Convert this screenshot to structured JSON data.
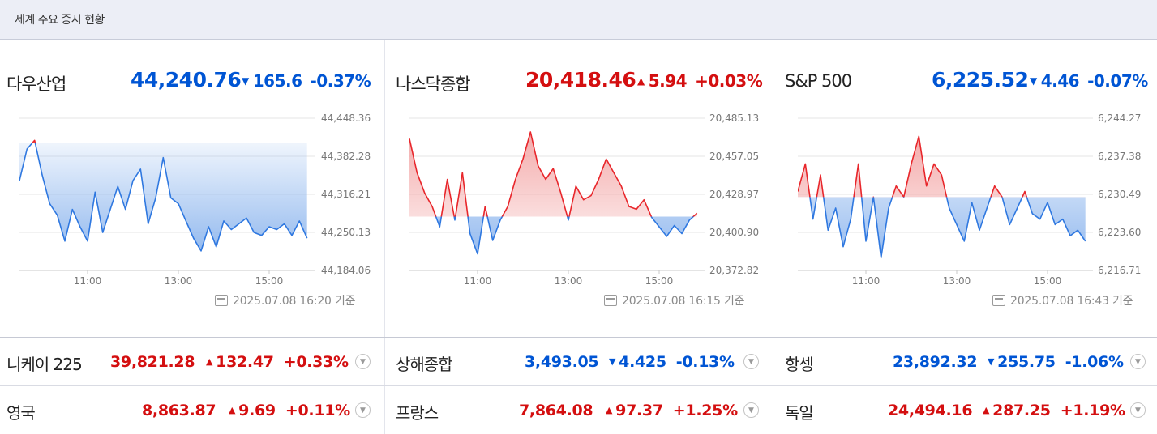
{
  "header": {
    "title": "세계 주요 증시 현황"
  },
  "panels": [
    {
      "name": "다우산업",
      "value": "44,240.76",
      "dir": "down",
      "arrow": "▼",
      "change": "165.6",
      "pct": "-0.37%",
      "timestamp": "2025.07.08 16:20 기준"
    },
    {
      "name": "나스닥종합",
      "value": "20,418.46",
      "dir": "up",
      "arrow": "▲",
      "change": "5.94",
      "pct": "+0.03%",
      "timestamp": "2025.07.08 16:15 기준"
    },
    {
      "name": "S&P 500",
      "value": "6,225.52",
      "dir": "down",
      "arrow": "▼",
      "change": "4.46",
      "pct": "-0.07%",
      "timestamp": "2025.07.08 16:43 기준"
    }
  ],
  "markets": [
    [
      {
        "name": "니케이 225",
        "value": "39,821.28",
        "dir": "up",
        "arrow": "▲",
        "change": "132.47",
        "pct": "+0.33%"
      },
      {
        "name": "상해종합",
        "value": "3,493.05",
        "dir": "down",
        "arrow": "▼",
        "change": "4.425",
        "pct": "-0.13%"
      },
      {
        "name": "항셍",
        "value": "23,892.32",
        "dir": "down",
        "arrow": "▼",
        "change": "255.75",
        "pct": "-1.06%"
      }
    ],
    [
      {
        "name": "영국",
        "value": "8,863.87",
        "dir": "up",
        "arrow": "▲",
        "change": "9.69",
        "pct": "+0.11%"
      },
      {
        "name": "프랑스",
        "value": "7,864.08",
        "dir": "up",
        "arrow": "▲",
        "change": "97.37",
        "pct": "+1.25%"
      },
      {
        "name": "독일",
        "value": "24,494.16",
        "dir": "up",
        "arrow": "▲",
        "change": "287.25",
        "pct": "+1.19%"
      }
    ]
  ],
  "chart_data": [
    {
      "type": "area",
      "title": "다우산업",
      "xlabel": "",
      "ylabel": "",
      "x_ticks": [
        "11:00",
        "13:00",
        "15:00"
      ],
      "y_ticks": [
        "44,448.36",
        "44,382.28",
        "44,316.21",
        "44,250.13",
        "44,184.06"
      ],
      "ylim": [
        44184.06,
        44448.36
      ],
      "baseline": 44405.0,
      "grid": true,
      "series": [
        {
          "x": [
            "09:30",
            "09:40",
            "09:50",
            "10:00",
            "10:10",
            "10:20",
            "10:30",
            "10:40",
            "10:50",
            "11:00",
            "11:10",
            "11:20",
            "11:30",
            "11:40",
            "11:50",
            "12:00",
            "12:10",
            "12:20",
            "12:30",
            "12:40",
            "12:50",
            "13:00",
            "13:10",
            "13:20",
            "13:30",
            "13:40",
            "13:50",
            "14:00",
            "14:10",
            "14:20",
            "14:30",
            "14:40",
            "14:50",
            "15:00",
            "15:10",
            "15:20",
            "15:30",
            "15:40",
            "15:50"
          ],
          "values": [
            44340,
            44395,
            44410,
            44350,
            44300,
            44280,
            44235,
            44290,
            44260,
            44235,
            44320,
            44250,
            44290,
            44330,
            44290,
            44340,
            44360,
            44265,
            44310,
            44380,
            44310,
            44300,
            44270,
            44240,
            44218,
            44260,
            44225,
            44270,
            44255,
            44265,
            44275,
            44250,
            44245,
            44260,
            44255,
            44265,
            44245,
            44270,
            44240
          ]
        }
      ]
    },
    {
      "type": "area",
      "title": "나스닥종합",
      "xlabel": "",
      "ylabel": "",
      "x_ticks": [
        "11:00",
        "13:00",
        "15:00"
      ],
      "y_ticks": [
        "20,485.13",
        "20,457.05",
        "20,428.97",
        "20,400.90",
        "20,372.82"
      ],
      "ylim": [
        20372.82,
        20485.13
      ],
      "baseline": 20412.52,
      "grid": true,
      "series": [
        {
          "x": [
            "09:30",
            "09:40",
            "09:50",
            "10:00",
            "10:10",
            "10:20",
            "10:30",
            "10:40",
            "10:50",
            "11:00",
            "11:10",
            "11:20",
            "11:30",
            "11:40",
            "11:50",
            "12:00",
            "12:10",
            "12:20",
            "12:30",
            "12:40",
            "12:50",
            "13:00",
            "13:10",
            "13:20",
            "13:30",
            "13:40",
            "13:50",
            "14:00",
            "14:10",
            "14:20",
            "14:30",
            "14:40",
            "14:50",
            "15:00",
            "15:10",
            "15:20",
            "15:30",
            "15:40",
            "15:50"
          ],
          "values": [
            20470,
            20445,
            20430,
            20420,
            20405,
            20440,
            20410,
            20445,
            20400,
            20385,
            20420,
            20395,
            20410,
            20420,
            20440,
            20455,
            20475,
            20450,
            20440,
            20448,
            20430,
            20410,
            20435,
            20425,
            20428,
            20440,
            20455,
            20445,
            20435,
            20420,
            20418,
            20425,
            20412,
            20405,
            20398,
            20406,
            20400,
            20410,
            20415
          ]
        }
      ]
    },
    {
      "type": "area",
      "title": "S&P 500",
      "xlabel": "",
      "ylabel": "",
      "x_ticks": [
        "11:00",
        "13:00",
        "15:00"
      ],
      "y_ticks": [
        "6,244.27",
        "6,237.38",
        "6,230.49",
        "6,223.60",
        "6,216.71"
      ],
      "ylim": [
        6216.71,
        6244.27
      ],
      "baseline": 6230.0,
      "grid": true,
      "series": [
        {
          "x": [
            "09:30",
            "09:40",
            "09:50",
            "10:00",
            "10:10",
            "10:20",
            "10:30",
            "10:40",
            "10:50",
            "11:00",
            "11:10",
            "11:20",
            "11:30",
            "11:40",
            "11:50",
            "12:00",
            "12:10",
            "12:20",
            "12:30",
            "12:40",
            "12:50",
            "13:00",
            "13:10",
            "13:20",
            "13:30",
            "13:40",
            "13:50",
            "14:00",
            "14:10",
            "14:20",
            "14:30",
            "14:40",
            "14:50",
            "15:00",
            "15:10",
            "15:20",
            "15:30",
            "15:40",
            "15:50"
          ],
          "values": [
            6231,
            6236,
            6226,
            6234,
            6224,
            6228,
            6221,
            6226,
            6236,
            6222,
            6230,
            6219,
            6228,
            6232,
            6230,
            6236,
            6241,
            6232,
            6236,
            6234,
            6228,
            6225,
            6222,
            6229,
            6224,
            6228,
            6232,
            6230,
            6225,
            6228,
            6231,
            6227,
            6226,
            6229,
            6225,
            6226,
            6223,
            6224,
            6222
          ]
        }
      ]
    }
  ]
}
